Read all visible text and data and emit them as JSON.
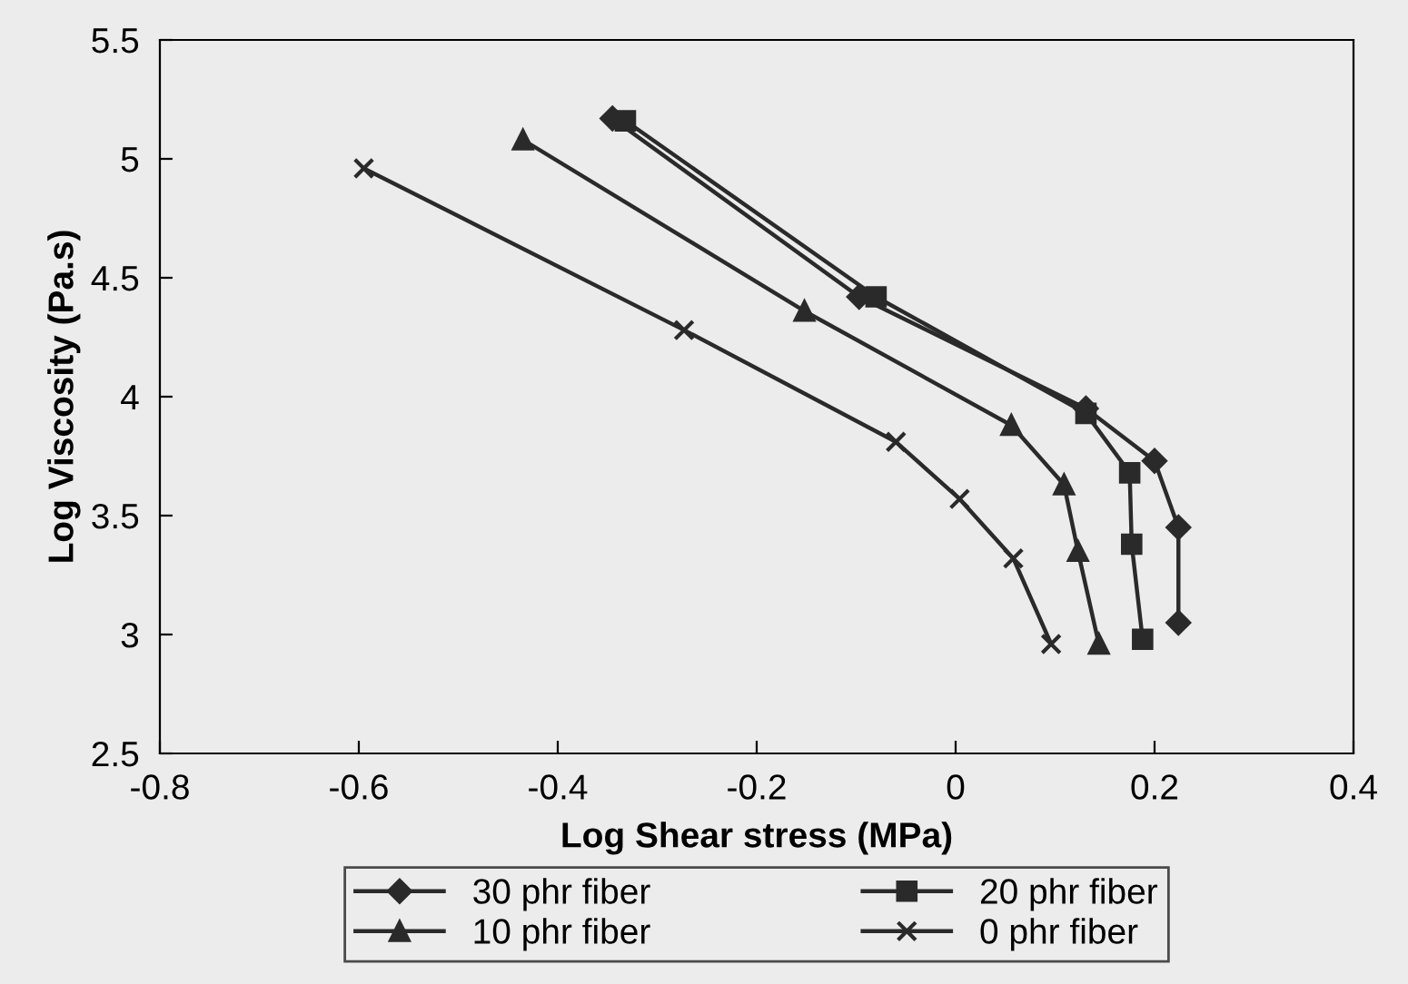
{
  "chart_data": {
    "type": "line",
    "xlabel": "Log Shear stress (MPa)",
    "ylabel": "Log Viscosity (Pa.s)",
    "xlim": [
      -0.8,
      0.4
    ],
    "xticks": [
      -0.8,
      -0.6,
      -0.4,
      -0.2,
      0,
      0.2,
      0.4
    ],
    "ylim": [
      2.5,
      5.5
    ],
    "yticks": [
      2.5,
      3,
      3.5,
      4,
      4.5,
      5,
      5.5
    ],
    "grid": false,
    "legend": "bottom",
    "line_style": "solid",
    "series": [
      {
        "name": "30 phr fiber",
        "color": "#2a2a2a",
        "marker": "diamond",
        "x": [
          -0.345,
          -0.097,
          0.131,
          0.2,
          0.224,
          0.224
        ],
        "values": [
          5.17,
          4.42,
          3.95,
          3.73,
          3.45,
          3.05
        ]
      },
      {
        "name": "20 phr fiber",
        "color": "#2a2a2a",
        "marker": "square",
        "x": [
          -0.332,
          -0.08,
          0.131,
          0.175,
          0.177,
          0.188
        ],
        "values": [
          5.16,
          4.42,
          3.93,
          3.68,
          3.38,
          2.98
        ]
      },
      {
        "name": "10 phr fiber",
        "color": "#2a2a2a",
        "marker": "triangle",
        "x": [
          -0.435,
          -0.152,
          0.056,
          0.109,
          0.123,
          0.144
        ],
        "values": [
          5.08,
          4.36,
          3.88,
          3.63,
          3.35,
          2.96
        ]
      },
      {
        "name": "0 phr fiber",
        "color": "#2a2a2a",
        "marker": "cross",
        "x": [
          -0.595,
          -0.273,
          -0.06,
          0.004,
          0.058,
          0.096
        ],
        "values": [
          4.96,
          4.28,
          3.81,
          3.57,
          3.32,
          2.96
        ]
      }
    ]
  }
}
